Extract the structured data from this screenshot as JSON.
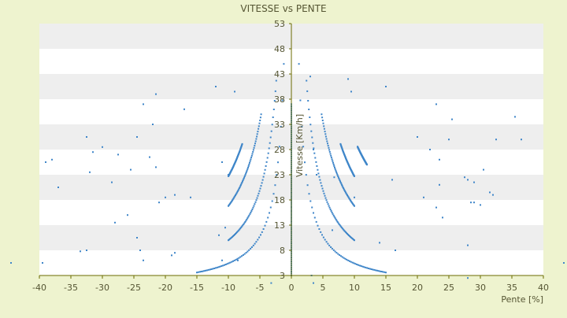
{
  "chart_data": {
    "type": "scatter",
    "title": "VITESSE vs PENTE",
    "xlabel": "Pente [%]",
    "ylabel": "Vitesse [Km/h]",
    "xlim": [
      -40,
      40
    ],
    "ylim": [
      3,
      53
    ],
    "x_ticks": [
      -40,
      -35,
      -30,
      -25,
      -20,
      -15,
      -10,
      -5,
      0,
      5,
      10,
      15,
      20,
      25,
      30,
      35,
      40
    ],
    "y_ticks": [
      3,
      8,
      13,
      18,
      23,
      28,
      33,
      38,
      43,
      48,
      53
    ],
    "grid": "alternating horizontal bands",
    "legend": "none",
    "colors": {
      "background": "#eef3cf",
      "plot_area": "#ffffff",
      "band": "#eeeeee",
      "points": "#3f86c9",
      "axis": "#6b6b00",
      "text": "#555533"
    },
    "series": [
      {
        "curves": [
          {
            "k": 54,
            "from": 1.2,
            "to": 15,
            "side": "both"
          },
          {
            "k": 100,
            "from": 2.4,
            "to": 10,
            "side": "both"
          },
          {
            "k": 168,
            "from": 4.8,
            "to": 10,
            "side": "both"
          },
          {
            "k": 227,
            "from": 7.8,
            "to": 10,
            "side": "both"
          },
          {
            "k": 300,
            "from": 10.5,
            "to": 12,
            "side": "positive"
          }
        ],
        "vertical_cluster": {
          "x": 0,
          "y_from": 3,
          "y_to": 37
        },
        "scattered": [
          [
            -44.5,
            5.5
          ],
          [
            -39.5,
            5.5
          ],
          [
            -39,
            25.5
          ],
          [
            -38,
            26
          ],
          [
            -37,
            20.5
          ],
          [
            -33.5,
            7.8
          ],
          [
            -32.5,
            8
          ],
          [
            -32.5,
            30.5
          ],
          [
            -32,
            23.5
          ],
          [
            -31.5,
            27.5
          ],
          [
            -30,
            28.5
          ],
          [
            -28.5,
            21.5
          ],
          [
            -28,
            13.5
          ],
          [
            -27.5,
            27
          ],
          [
            -26,
            15
          ],
          [
            -25.5,
            24
          ],
          [
            -24.5,
            30.5
          ],
          [
            -24.5,
            10.5
          ],
          [
            -24,
            8
          ],
          [
            -23.5,
            6
          ],
          [
            -23.5,
            37
          ],
          [
            -22.5,
            26.5
          ],
          [
            -22,
            33
          ],
          [
            -21.5,
            24.5
          ],
          [
            -21.5,
            39
          ],
          [
            -21,
            17.5
          ],
          [
            -20,
            18.5
          ],
          [
            -19,
            7
          ],
          [
            -18.5,
            7.5
          ],
          [
            -18.5,
            19
          ],
          [
            -17,
            36
          ],
          [
            -16,
            18.5
          ],
          [
            -12,
            40.5
          ],
          [
            -11.5,
            11
          ],
          [
            -11,
            25.5
          ],
          [
            -10.5,
            12.5
          ],
          [
            -10,
            23
          ],
          [
            -9,
            39.5
          ],
          [
            -8.5,
            6
          ],
          [
            -11,
            6
          ],
          [
            -3.2,
            1.5
          ],
          [
            3,
            42.5
          ],
          [
            3.2,
            3
          ],
          [
            3.5,
            1.5
          ],
          [
            3.5,
            28
          ],
          [
            4,
            23
          ],
          [
            6.5,
            12
          ],
          [
            6.8,
            22.5
          ],
          [
            9,
            42
          ],
          [
            9.5,
            39.5
          ],
          [
            10,
            18.5
          ],
          [
            14,
            9.5
          ],
          [
            15,
            40.5
          ],
          [
            16,
            22
          ],
          [
            16.5,
            8
          ],
          [
            20,
            30.5
          ],
          [
            21,
            18.5
          ],
          [
            22,
            28
          ],
          [
            23,
            37
          ],
          [
            23,
            16.5
          ],
          [
            23.5,
            26
          ],
          [
            23.5,
            21
          ],
          [
            24,
            14.5
          ],
          [
            25,
            30
          ],
          [
            25.5,
            34
          ],
          [
            27.5,
            22.5
          ],
          [
            28,
            9
          ],
          [
            28,
            2.5
          ],
          [
            28,
            22
          ],
          [
            28.5,
            17.5
          ],
          [
            29,
            17.5
          ],
          [
            29,
            21.5
          ],
          [
            30,
            17
          ],
          [
            30.5,
            24
          ],
          [
            31.5,
            19.5
          ],
          [
            32,
            19
          ],
          [
            32.5,
            30
          ],
          [
            35.5,
            34.5
          ],
          [
            36.5,
            30
          ],
          [
            44.5,
            5.5
          ]
        ]
      }
    ]
  }
}
